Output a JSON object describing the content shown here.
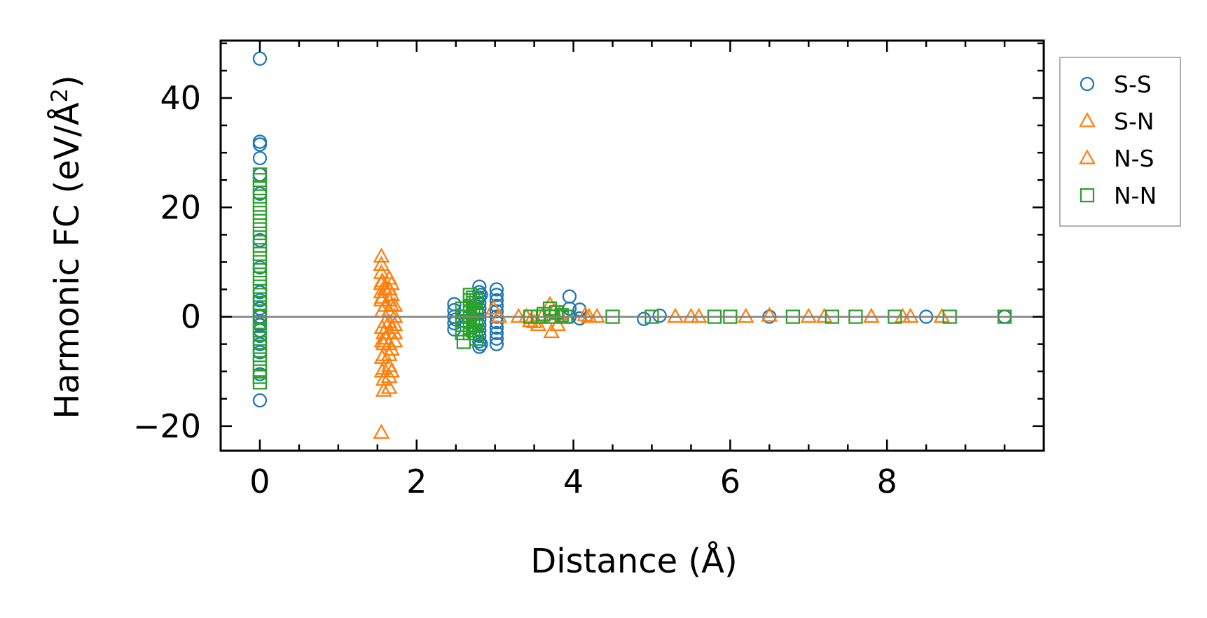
{
  "chart_data": {
    "type": "scatter",
    "title": "",
    "xlabel": "Distance (Å)",
    "ylabel": "Harmonic FC (eV/Å²)",
    "ylabel_parts": {
      "main": "Harmonic FC (eV/Å",
      "sup": "2",
      "end": ")"
    },
    "xlim": [
      -0.5,
      10.0
    ],
    "ylim": [
      -24.5,
      50.5
    ],
    "x_ticks": [
      0,
      2,
      4,
      6,
      8
    ],
    "x_tick_labels": [
      "0",
      "2",
      "4",
      "6",
      "8"
    ],
    "y_ticks": [
      -20,
      0,
      20,
      40
    ],
    "y_tick_labels": [
      "−20",
      "0",
      "20",
      "40"
    ],
    "grid": false,
    "zero_line": true,
    "legend_position": "outside-right",
    "series": [
      {
        "name": "S-S",
        "marker": "circle",
        "color": "#1f77b4",
        "points": [
          [
            0,
            47.2
          ],
          [
            0,
            32
          ],
          [
            0,
            31.5
          ],
          [
            0,
            29
          ],
          [
            0,
            26
          ],
          [
            0,
            22.5
          ],
          [
            0,
            14
          ],
          [
            0,
            9
          ],
          [
            0,
            4.5
          ],
          [
            0,
            3
          ],
          [
            0,
            1.5
          ],
          [
            0,
            0
          ],
          [
            0,
            -1.5
          ],
          [
            0,
            -2.5
          ],
          [
            0,
            -3.5
          ],
          [
            0,
            -5
          ],
          [
            0,
            -6.5
          ],
          [
            0,
            -10.5
          ],
          [
            0,
            -15.3
          ],
          [
            2.48,
            2.3
          ],
          [
            2.48,
            1.2
          ],
          [
            2.48,
            0
          ],
          [
            2.48,
            -1.2
          ],
          [
            2.48,
            -2.3
          ],
          [
            2.5,
            -0.5
          ],
          [
            2.8,
            5.5
          ],
          [
            2.8,
            4.5
          ],
          [
            2.8,
            3.5
          ],
          [
            2.8,
            2.5
          ],
          [
            2.8,
            1.5
          ],
          [
            2.8,
            0.5
          ],
          [
            2.8,
            -0.5
          ],
          [
            2.8,
            -1.5
          ],
          [
            2.8,
            -2.5
          ],
          [
            2.8,
            -3.5
          ],
          [
            2.8,
            -4.5
          ],
          [
            2.8,
            -5.5
          ],
          [
            2.82,
            4
          ],
          [
            2.82,
            -5
          ],
          [
            3.02,
            5
          ],
          [
            3.02,
            4
          ],
          [
            3.02,
            3
          ],
          [
            3.02,
            2
          ],
          [
            3.02,
            1
          ],
          [
            3.02,
            0
          ],
          [
            3.02,
            -1
          ],
          [
            3.02,
            -2
          ],
          [
            3.02,
            -3
          ],
          [
            3.02,
            -4
          ],
          [
            3.02,
            -5
          ],
          [
            3.95,
            3.7
          ],
          [
            3.95,
            1.5
          ],
          [
            3.95,
            0
          ],
          [
            4.08,
            1.3
          ],
          [
            4.08,
            -0.3
          ],
          [
            4.9,
            -0.4
          ],
          [
            5.1,
            0.2
          ],
          [
            6.5,
            0
          ],
          [
            8.5,
            0
          ],
          [
            9.5,
            0
          ]
        ]
      },
      {
        "name": "S-N",
        "marker": "triangle",
        "color": "#ff7f0e",
        "points": [
          [
            1.55,
            11
          ],
          [
            1.55,
            9.5
          ],
          [
            1.55,
            8
          ],
          [
            1.55,
            6
          ],
          [
            1.55,
            4.5
          ],
          [
            1.55,
            3
          ],
          [
            1.58,
            -3
          ],
          [
            1.58,
            -5
          ],
          [
            1.58,
            -7
          ],
          [
            1.58,
            -9.5
          ],
          [
            1.58,
            -11.5
          ],
          [
            1.58,
            -13.5
          ],
          [
            1.55,
            -21.2
          ],
          [
            1.6,
            5
          ],
          [
            1.6,
            2
          ],
          [
            1.6,
            -1
          ],
          [
            1.6,
            -4
          ],
          [
            1.65,
            7
          ],
          [
            1.65,
            5
          ],
          [
            1.65,
            3
          ],
          [
            1.65,
            1
          ],
          [
            1.65,
            -1
          ],
          [
            1.65,
            -3
          ],
          [
            1.65,
            -5
          ],
          [
            1.65,
            -7
          ],
          [
            1.65,
            -9
          ],
          [
            1.65,
            -11
          ],
          [
            1.65,
            -13
          ],
          [
            1.72,
            2
          ],
          [
            1.72,
            0
          ],
          [
            1.72,
            -1.5
          ],
          [
            1.72,
            -3
          ],
          [
            1.72,
            -4.5
          ],
          [
            2.98,
            1.5
          ],
          [
            3.05,
            0
          ],
          [
            3.3,
            0
          ],
          [
            3.5,
            -1
          ],
          [
            3.55,
            -1.5
          ],
          [
            3.6,
            0
          ],
          [
            3.7,
            2.2
          ],
          [
            3.72,
            -2.8
          ],
          [
            3.75,
            1
          ],
          [
            3.8,
            -1.5
          ],
          [
            3.82,
            0.5
          ],
          [
            4.15,
            0.3
          ],
          [
            4.3,
            0
          ],
          [
            5.3,
            0
          ],
          [
            5.6,
            0
          ],
          [
            6.2,
            0
          ],
          [
            7.2,
            0
          ],
          [
            8.2,
            0
          ],
          [
            8.7,
            0
          ]
        ]
      },
      {
        "name": "N-S",
        "marker": "triangle",
        "color": "#ff7f0e",
        "points": [
          [
            1.56,
            6.5
          ],
          [
            1.56,
            3.5
          ],
          [
            1.56,
            1
          ],
          [
            1.56,
            -2
          ],
          [
            1.56,
            -4.5
          ],
          [
            1.56,
            -7.5
          ],
          [
            1.56,
            -10
          ],
          [
            1.68,
            6
          ],
          [
            1.68,
            4
          ],
          [
            1.68,
            2
          ],
          [
            1.68,
            -2
          ],
          [
            1.68,
            -6
          ],
          [
            1.68,
            -10
          ],
          [
            3.4,
            0
          ],
          [
            3.45,
            -0.8
          ],
          [
            4.2,
            0
          ],
          [
            5.5,
            0
          ],
          [
            6.5,
            0.2
          ],
          [
            7.0,
            0
          ],
          [
            7.8,
            0
          ],
          [
            8.3,
            0
          ]
        ]
      },
      {
        "name": "N-N",
        "marker": "square",
        "color": "#2ca02c",
        "points": [
          [
            0,
            26
          ],
          [
            0,
            25
          ],
          [
            0,
            23.5
          ],
          [
            0,
            22
          ],
          [
            0,
            20.5
          ],
          [
            0,
            19
          ],
          [
            0,
            17.5
          ],
          [
            0,
            16
          ],
          [
            0,
            14.5
          ],
          [
            0,
            13
          ],
          [
            0,
            11.5
          ],
          [
            0,
            10
          ],
          [
            0,
            8.5
          ],
          [
            0,
            7
          ],
          [
            0,
            5.5
          ],
          [
            0,
            4
          ],
          [
            0,
            2.5
          ],
          [
            0,
            1
          ],
          [
            0,
            0
          ],
          [
            0,
            -1
          ],
          [
            0,
            -2.5
          ],
          [
            0,
            -4
          ],
          [
            0,
            -5.5
          ],
          [
            0,
            -7
          ],
          [
            0,
            -8.5
          ],
          [
            0,
            -10
          ],
          [
            0,
            -11
          ],
          [
            0,
            -12
          ],
          [
            2.58,
            1.5
          ],
          [
            2.58,
            0
          ],
          [
            2.58,
            -1.5
          ],
          [
            2.58,
            -3
          ],
          [
            2.6,
            -4.6
          ],
          [
            2.68,
            4
          ],
          [
            2.68,
            3
          ],
          [
            2.68,
            2
          ],
          [
            2.68,
            1
          ],
          [
            2.68,
            0
          ],
          [
            2.68,
            -1
          ],
          [
            2.68,
            -2
          ],
          [
            2.68,
            -3
          ],
          [
            2.72,
            3.5
          ],
          [
            2.72,
            2.5
          ],
          [
            2.72,
            1.5
          ],
          [
            2.72,
            0.5
          ],
          [
            2.72,
            -0.5
          ],
          [
            2.72,
            -1.5
          ],
          [
            2.72,
            -2.5
          ],
          [
            2.76,
            3
          ],
          [
            2.76,
            1
          ],
          [
            2.76,
            -1
          ],
          [
            2.76,
            -3
          ],
          [
            2.76,
            -4
          ],
          [
            3.45,
            0
          ],
          [
            3.55,
            0
          ],
          [
            3.62,
            0.5
          ],
          [
            3.7,
            1.5
          ],
          [
            3.72,
            0
          ],
          [
            3.78,
            0.8
          ],
          [
            3.85,
            0.3
          ],
          [
            3.9,
            0
          ],
          [
            4.5,
            0
          ],
          [
            5.0,
            0
          ],
          [
            5.8,
            0
          ],
          [
            6.0,
            0
          ],
          [
            6.8,
            0
          ],
          [
            7.3,
            0
          ],
          [
            7.6,
            0
          ],
          [
            8.1,
            0
          ],
          [
            8.8,
            0
          ],
          [
            9.5,
            0
          ]
        ]
      }
    ]
  }
}
